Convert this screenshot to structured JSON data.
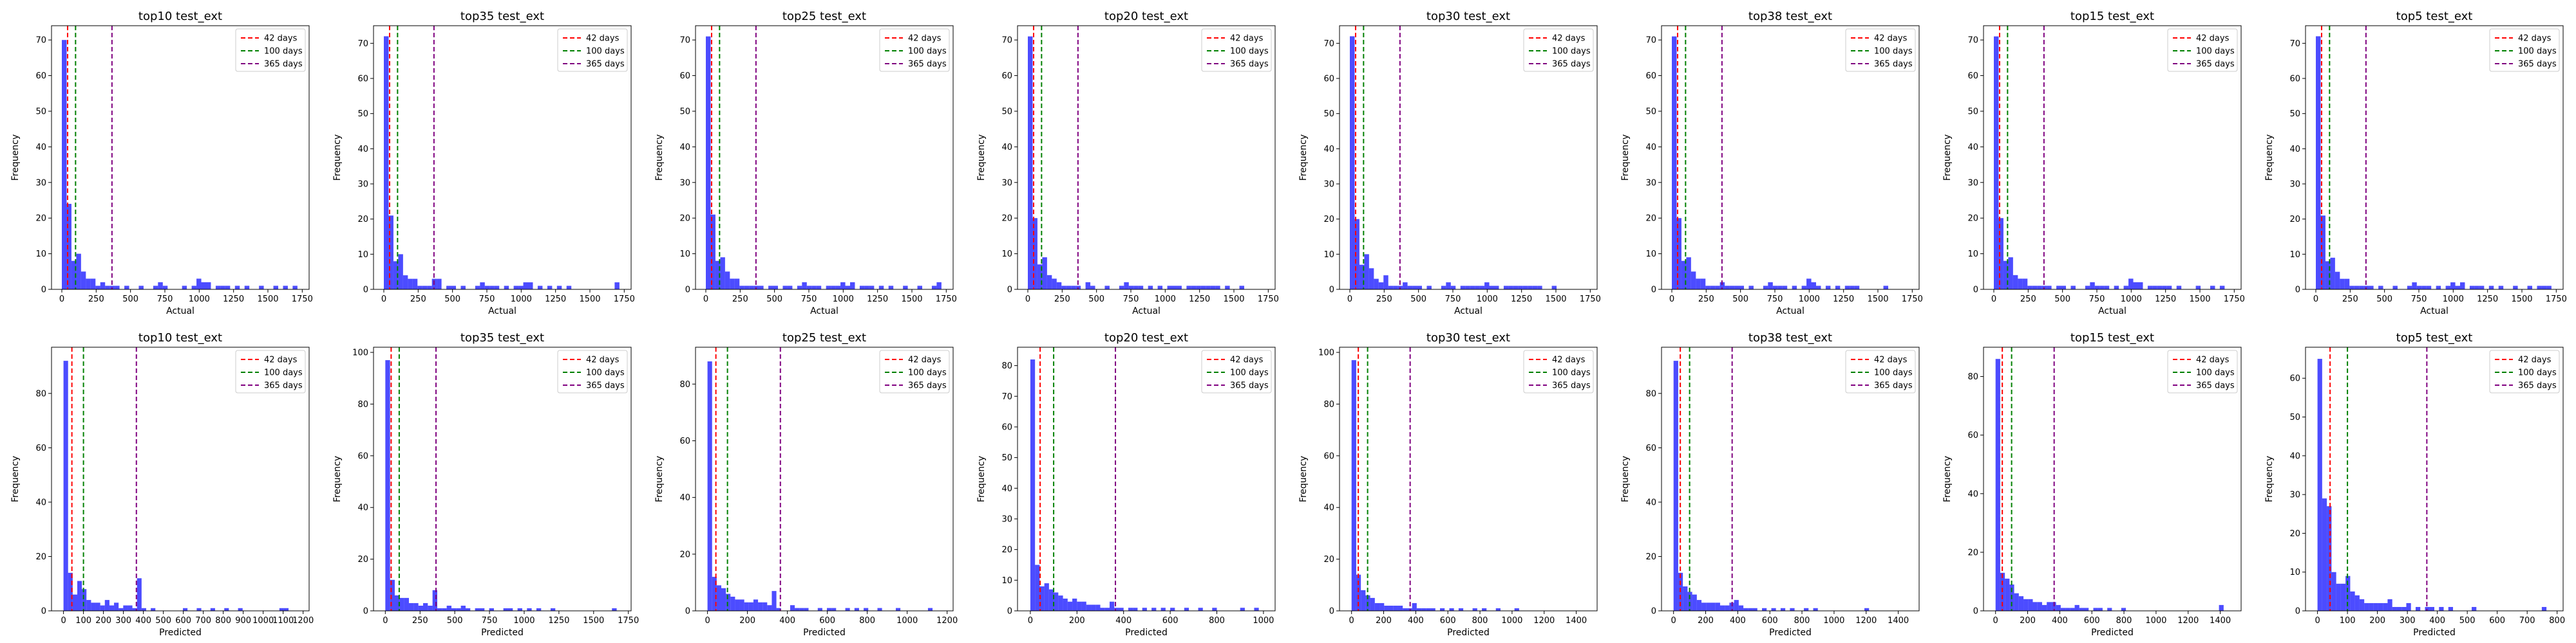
{
  "colors": {
    "bar": "#0000ff",
    "line42": "#ff0000",
    "line100": "#008000",
    "line365": "#800080"
  },
  "legend": [
    "42 days",
    "100 days",
    "365 days"
  ],
  "chart_data": [
    {
      "type": "bar",
      "title": "top10 test_ext",
      "xlabel": "Actual",
      "ylabel": "Frequency",
      "xlim": [
        -75,
        1800
      ],
      "ylim": [
        0,
        74
      ],
      "xticks": [
        0,
        250,
        500,
        750,
        1000,
        1250,
        1500,
        1750
      ],
      "yticks": [
        0,
        10,
        20,
        30,
        40,
        50,
        60,
        70
      ],
      "bin_start": 0,
      "bin_width": 35,
      "values": [
        70,
        24,
        8,
        10,
        5,
        3,
        3,
        1,
        2,
        1,
        1,
        1,
        0,
        1,
        0,
        0,
        1,
        0,
        0,
        1,
        2,
        1,
        0,
        0,
        0,
        1,
        0,
        1,
        3,
        2,
        2,
        0,
        1,
        1,
        1,
        0,
        1,
        0,
        1,
        0,
        0,
        1,
        0,
        0,
        1,
        0,
        1,
        0,
        1,
        0
      ],
      "vlines": [
        42,
        100,
        365
      ]
    },
    {
      "type": "bar",
      "title": "top35 test_ext",
      "xlabel": "Actual",
      "ylabel": "Frequency",
      "xlim": [
        -75,
        1800
      ],
      "ylim": [
        0,
        75
      ],
      "xticks": [
        0,
        250,
        500,
        750,
        1000,
        1250,
        1500,
        1750
      ],
      "yticks": [
        0,
        10,
        20,
        30,
        40,
        50,
        60,
        70
      ],
      "bin_start": 0,
      "bin_width": 35,
      "values": [
        72,
        21,
        8,
        10,
        4,
        3,
        3,
        1,
        1,
        1,
        3,
        3,
        0,
        1,
        1,
        0,
        1,
        0,
        0,
        1,
        2,
        1,
        1,
        1,
        0,
        1,
        0,
        1,
        1,
        2,
        2,
        0,
        1,
        0,
        1,
        0,
        1,
        0,
        1,
        0,
        0,
        0,
        0,
        0,
        0,
        0,
        0,
        0,
        2,
        0
      ],
      "vlines": [
        42,
        100,
        365
      ]
    },
    {
      "type": "bar",
      "title": "top25 test_ext",
      "xlabel": "Actual",
      "ylabel": "Frequency",
      "xlim": [
        -75,
        1800
      ],
      "ylim": [
        0,
        74
      ],
      "xticks": [
        0,
        250,
        500,
        750,
        1000,
        1250,
        1500,
        1750
      ],
      "yticks": [
        0,
        10,
        20,
        30,
        40,
        50,
        60,
        70
      ],
      "bin_start": 0,
      "bin_width": 35,
      "values": [
        71,
        21,
        8,
        9,
        5,
        3,
        3,
        1,
        1,
        1,
        1,
        1,
        0,
        1,
        1,
        0,
        1,
        1,
        0,
        1,
        2,
        1,
        1,
        1,
        0,
        1,
        1,
        1,
        2,
        1,
        2,
        0,
        1,
        1,
        1,
        0,
        1,
        0,
        1,
        0,
        0,
        1,
        0,
        0,
        1,
        0,
        0,
        1,
        2,
        0
      ],
      "vlines": [
        42,
        100,
        365
      ]
    },
    {
      "type": "bar",
      "title": "top20 test_ext",
      "xlabel": "Actual",
      "ylabel": "Frequency",
      "xlim": [
        -75,
        1800
      ],
      "ylim": [
        0,
        74
      ],
      "xticks": [
        0,
        250,
        500,
        750,
        1000,
        1250,
        1500,
        1750
      ],
      "yticks": [
        0,
        10,
        20,
        30,
        40,
        50,
        60,
        70
      ],
      "bin_start": 0,
      "bin_width": 35,
      "values": [
        71,
        20,
        7,
        9,
        4,
        3,
        2,
        1,
        1,
        1,
        1,
        0,
        2,
        1,
        0,
        0,
        1,
        0,
        0,
        1,
        2,
        1,
        1,
        1,
        0,
        1,
        0,
        1,
        0,
        1,
        1,
        1,
        0,
        1,
        1,
        1,
        1,
        1,
        1,
        1,
        0,
        1,
        0,
        0,
        1,
        0,
        0,
        0,
        0,
        0
      ],
      "vlines": [
        42,
        100,
        365
      ]
    },
    {
      "type": "bar",
      "title": "top30 test_ext",
      "xlabel": "Actual",
      "ylabel": "Frequency",
      "xlim": [
        -75,
        1800
      ],
      "ylim": [
        0,
        75
      ],
      "xticks": [
        0,
        250,
        500,
        750,
        1000,
        1250,
        1500,
        1750
      ],
      "yticks": [
        0,
        10,
        20,
        30,
        40,
        50,
        60,
        70
      ],
      "bin_start": 0,
      "bin_width": 35,
      "values": [
        72,
        20,
        7,
        10,
        6,
        3,
        2,
        4,
        1,
        1,
        1,
        2,
        1,
        1,
        1,
        0,
        1,
        0,
        0,
        1,
        2,
        1,
        0,
        1,
        1,
        1,
        1,
        1,
        2,
        1,
        1,
        0,
        1,
        1,
        1,
        1,
        1,
        1,
        1,
        1,
        0,
        0,
        1,
        0,
        0,
        0,
        0,
        0,
        0,
        0
      ],
      "vlines": [
        42,
        100,
        365
      ]
    },
    {
      "type": "bar",
      "title": "top38 test_ext",
      "xlabel": "Actual",
      "ylabel": "Frequency",
      "xlim": [
        -75,
        1800
      ],
      "ylim": [
        0,
        74
      ],
      "xticks": [
        0,
        250,
        500,
        750,
        1000,
        1250,
        1500,
        1750
      ],
      "yticks": [
        0,
        10,
        20,
        30,
        40,
        50,
        60,
        70
      ],
      "bin_start": 0,
      "bin_width": 35,
      "values": [
        71,
        20,
        8,
        9,
        5,
        3,
        3,
        1,
        1,
        1,
        2,
        1,
        1,
        1,
        1,
        0,
        1,
        0,
        0,
        1,
        2,
        1,
        1,
        1,
        0,
        1,
        0,
        1,
        3,
        2,
        1,
        0,
        1,
        0,
        1,
        0,
        1,
        1,
        1,
        0,
        0,
        0,
        0,
        0,
        1,
        0,
        0,
        0,
        0,
        0
      ],
      "vlines": [
        42,
        100,
        365
      ]
    },
    {
      "type": "bar",
      "title": "top15 test_ext",
      "xlabel": "Actual",
      "ylabel": "Frequency",
      "xlim": [
        -75,
        1800
      ],
      "ylim": [
        0,
        74
      ],
      "xticks": [
        0,
        250,
        500,
        750,
        1000,
        1250,
        1500,
        1750
      ],
      "yticks": [
        0,
        10,
        20,
        30,
        40,
        50,
        60,
        70
      ],
      "bin_start": 0,
      "bin_width": 35,
      "values": [
        71,
        20,
        8,
        9,
        4,
        3,
        3,
        1,
        1,
        1,
        1,
        1,
        0,
        1,
        1,
        0,
        1,
        0,
        0,
        1,
        2,
        1,
        1,
        1,
        0,
        1,
        0,
        1,
        3,
        2,
        2,
        0,
        1,
        1,
        1,
        1,
        1,
        0,
        1,
        0,
        0,
        0,
        1,
        0,
        0,
        1,
        0,
        1,
        0,
        0
      ],
      "vlines": [
        42,
        100,
        365
      ]
    },
    {
      "type": "bar",
      "title": "top5 test_ext",
      "xlabel": "Actual",
      "ylabel": "Frequency",
      "xlim": [
        -75,
        1800
      ],
      "ylim": [
        0,
        75
      ],
      "xticks": [
        0,
        250,
        500,
        750,
        1000,
        1250,
        1500,
        1750
      ],
      "yticks": [
        0,
        10,
        20,
        30,
        40,
        50,
        60,
        70
      ],
      "bin_start": 0,
      "bin_width": 35,
      "values": [
        72,
        21,
        8,
        9,
        5,
        3,
        3,
        1,
        1,
        1,
        1,
        1,
        0,
        1,
        0,
        0,
        1,
        0,
        0,
        1,
        2,
        1,
        1,
        1,
        0,
        1,
        0,
        1,
        2,
        1,
        2,
        0,
        1,
        1,
        1,
        0,
        1,
        0,
        1,
        0,
        0,
        1,
        0,
        0,
        1,
        0,
        1,
        1,
        1,
        0
      ],
      "vlines": [
        42,
        100,
        365
      ]
    },
    {
      "type": "bar",
      "title": "top10 test_ext",
      "xlabel": "Predicted",
      "ylabel": "Frequency",
      "xlim": [
        -60,
        1230
      ],
      "ylim": [
        0,
        97
      ],
      "xticks": [
        0,
        100,
        200,
        300,
        400,
        500,
        600,
        700,
        800,
        900,
        1000,
        1100,
        1200
      ],
      "yticks": [
        0,
        20,
        40,
        60,
        80
      ],
      "bin_start": 0,
      "bin_width": 23,
      "values": [
        92,
        14,
        6,
        11,
        8,
        4,
        3,
        3,
        2,
        4,
        2,
        3,
        1,
        2,
        2,
        1,
        12,
        1,
        0,
        1,
        0,
        0,
        0,
        0,
        0,
        0,
        1,
        0,
        0,
        1,
        0,
        0,
        1,
        0,
        0,
        1,
        0,
        0,
        1,
        0,
        0,
        0,
        0,
        0,
        0,
        0,
        0,
        1,
        1,
        0
      ],
      "vlines": [
        42,
        100,
        365
      ]
    },
    {
      "type": "bar",
      "title": "top35 test_ext",
      "xlabel": "Predicted",
      "ylabel": "Frequency",
      "xlim": [
        -85,
        1770
      ],
      "ylim": [
        0,
        102
      ],
      "xticks": [
        0,
        250,
        500,
        750,
        1000,
        1250,
        1500,
        1750
      ],
      "yticks": [
        0,
        20,
        40,
        60,
        80,
        100
      ],
      "bin_start": 0,
      "bin_width": 34,
      "values": [
        97,
        12,
        6,
        5,
        5,
        3,
        3,
        2,
        3,
        2,
        8,
        1,
        1,
        2,
        1,
        1,
        2,
        1,
        0,
        1,
        1,
        0,
        1,
        0,
        0,
        1,
        1,
        0,
        1,
        0,
        1,
        0,
        1,
        0,
        0,
        1,
        0,
        0,
        0,
        0,
        0,
        0,
        0,
        0,
        0,
        0,
        0,
        0,
        1,
        0
      ],
      "vlines": [
        42,
        100,
        365
      ]
    },
    {
      "type": "bar",
      "title": "top25 test_ext",
      "xlabel": "Predicted",
      "ylabel": "Frequency",
      "xlim": [
        -60,
        1230
      ],
      "ylim": [
        0,
        93
      ],
      "xticks": [
        0,
        200,
        400,
        600,
        800,
        1000,
        1200
      ],
      "yticks": [
        0,
        20,
        40,
        60,
        80
      ],
      "bin_start": 0,
      "bin_width": 23,
      "values": [
        88,
        12,
        9,
        8,
        6,
        5,
        4,
        4,
        3,
        3,
        4,
        3,
        3,
        2,
        7,
        1,
        0,
        0,
        2,
        1,
        1,
        1,
        0,
        0,
        1,
        0,
        1,
        1,
        0,
        0,
        1,
        0,
        1,
        0,
        1,
        0,
        0,
        1,
        0,
        0,
        0,
        1,
        0,
        0,
        0,
        0,
        0,
        0,
        1,
        0
      ],
      "vlines": [
        42,
        100,
        365
      ]
    },
    {
      "type": "bar",
      "title": "top20 test_ext",
      "xlabel": "Predicted",
      "ylabel": "Frequency",
      "xlim": [
        -55,
        1050
      ],
      "ylim": [
        0,
        86
      ],
      "xticks": [
        0,
        200,
        400,
        600,
        800,
        1000
      ],
      "yticks": [
        0,
        10,
        20,
        30,
        40,
        50,
        60,
        70,
        80
      ],
      "bin_start": 0,
      "bin_width": 20,
      "values": [
        82,
        15,
        8,
        9,
        7,
        6,
        5,
        4,
        3,
        4,
        3,
        3,
        2,
        2,
        2,
        1,
        1,
        3,
        1,
        1,
        0,
        1,
        1,
        0,
        1,
        0,
        1,
        0,
        1,
        0,
        1,
        0,
        0,
        1,
        0,
        0,
        1,
        0,
        0,
        1,
        0,
        0,
        0,
        0,
        0,
        1,
        0,
        0,
        1,
        0
      ],
      "vlines": [
        42,
        100,
        365
      ]
    },
    {
      "type": "bar",
      "title": "top30 test_ext",
      "xlabel": "Predicted",
      "ylabel": "Frequency",
      "xlim": [
        -75,
        1530
      ],
      "ylim": [
        0,
        102
      ],
      "xticks": [
        0,
        200,
        400,
        600,
        800,
        1000,
        1200,
        1400
      ],
      "yticks": [
        0,
        20,
        40,
        60,
        80,
        100
      ],
      "bin_start": 0,
      "bin_width": 29,
      "values": [
        97,
        14,
        8,
        6,
        5,
        3,
        3,
        2,
        2,
        2,
        2,
        1,
        1,
        3,
        1,
        1,
        1,
        1,
        0,
        1,
        0,
        1,
        0,
        1,
        0,
        0,
        1,
        0,
        1,
        0,
        0,
        1,
        0,
        0,
        0,
        1,
        0,
        0,
        0,
        0,
        0,
        0,
        0,
        0,
        0,
        0,
        0,
        0,
        0,
        0
      ],
      "vlines": [
        42,
        100,
        365
      ]
    },
    {
      "type": "bar",
      "title": "top38 test_ext",
      "xlabel": "Predicted",
      "ylabel": "Frequency",
      "xlim": [
        -75,
        1530
      ],
      "ylim": [
        0,
        97
      ],
      "xticks": [
        0,
        200,
        400,
        600,
        800,
        1000,
        1200,
        1400
      ],
      "yticks": [
        0,
        20,
        40,
        60,
        80
      ],
      "bin_start": 0,
      "bin_width": 29,
      "values": [
        92,
        14,
        9,
        7,
        6,
        4,
        3,
        3,
        3,
        3,
        2,
        2,
        3,
        4,
        2,
        1,
        1,
        1,
        0,
        1,
        0,
        1,
        0,
        1,
        0,
        1,
        0,
        0,
        1,
        0,
        1,
        0,
        0,
        0,
        0,
        0,
        0,
        0,
        0,
        0,
        0,
        1,
        0,
        0,
        0,
        0,
        0,
        0,
        0,
        0
      ],
      "vlines": [
        42,
        100,
        365
      ]
    },
    {
      "type": "bar",
      "title": "top15 test_ext",
      "xlabel": "Predicted",
      "ylabel": "Frequency",
      "xlim": [
        -75,
        1530
      ],
      "ylim": [
        0,
        90
      ],
      "xticks": [
        0,
        200,
        400,
        600,
        800,
        1000,
        1200,
        1400
      ],
      "yticks": [
        0,
        20,
        40,
        60,
        80
      ],
      "bin_start": 0,
      "bin_width": 29,
      "values": [
        86,
        13,
        11,
        9,
        6,
        5,
        4,
        4,
        3,
        3,
        2,
        3,
        3,
        2,
        1,
        1,
        1,
        2,
        1,
        1,
        0,
        1,
        1,
        0,
        1,
        0,
        0,
        1,
        0,
        0,
        0,
        0,
        0,
        0,
        0,
        0,
        0,
        0,
        0,
        0,
        0,
        0,
        0,
        0,
        0,
        0,
        0,
        0,
        2,
        0
      ],
      "vlines": [
        42,
        100,
        365
      ]
    },
    {
      "type": "bar",
      "title": "top5 test_ext",
      "xlabel": "Predicted",
      "ylabel": "Frequency",
      "xlim": [
        -40,
        820
      ],
      "ylim": [
        0,
        68
      ],
      "xticks": [
        0,
        100,
        200,
        300,
        400,
        500,
        600,
        700,
        800
      ],
      "yticks": [
        0,
        10,
        20,
        30,
        40,
        50,
        60
      ],
      "bin_start": 0,
      "bin_width": 15.6,
      "values": [
        65,
        29,
        27,
        10,
        7,
        7,
        9,
        5,
        4,
        3,
        2,
        2,
        2,
        2,
        2,
        3,
        1,
        1,
        1,
        2,
        0,
        1,
        0,
        1,
        1,
        0,
        1,
        0,
        1,
        0,
        0,
        0,
        0,
        1,
        0,
        0,
        0,
        0,
        0,
        0,
        0,
        0,
        0,
        0,
        0,
        0,
        0,
        0,
        1,
        0
      ],
      "vlines": [
        42,
        100,
        365
      ]
    }
  ]
}
